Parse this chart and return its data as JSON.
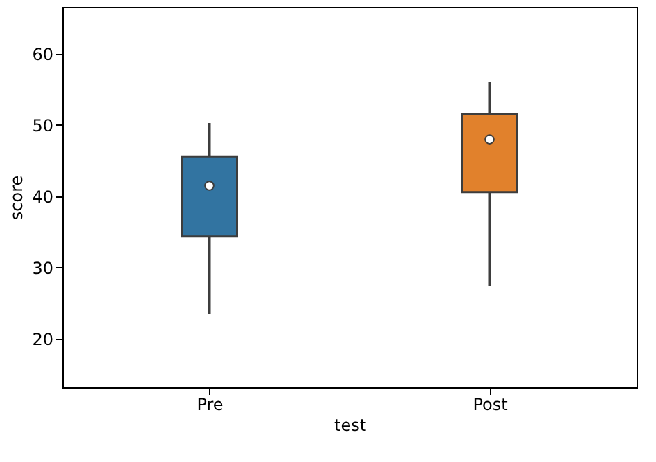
{
  "chart_data": {
    "type": "box",
    "xlabel": "test",
    "ylabel": "score",
    "categories": [
      "Pre",
      "Post"
    ],
    "colors": [
      "#3274a1",
      "#e1812c"
    ],
    "boxes": [
      {
        "low": 23.5,
        "q1": 34.4,
        "median": 41.5,
        "q3": 45.6,
        "high": 50.3
      },
      {
        "low": 27.4,
        "q1": 40.6,
        "median": 48,
        "q3": 51.5,
        "high": 56.1
      }
    ],
    "ylim": [
      13.2,
      66.6
    ],
    "yticks": [
      20,
      30,
      40,
      50,
      60
    ],
    "grid": false
  }
}
